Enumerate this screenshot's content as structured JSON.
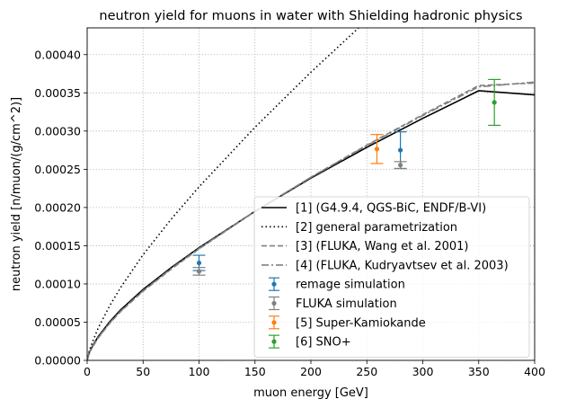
{
  "chart_data": {
    "type": "line",
    "title": "neutron yield for muons in water with Shielding hadronic physics",
    "xlabel": "muon energy [GeV]",
    "ylabel": "neutron yield [n/muon/(g/cm^2)]",
    "xlim": [
      0,
      400
    ],
    "ylim": [
      0,
      0.000435
    ],
    "xticks": [
      "0",
      "50",
      "100",
      "150",
      "200",
      "250",
      "300",
      "350",
      "400"
    ],
    "yticks": [
      "0.00000",
      "0.00005",
      "0.00010",
      "0.00015",
      "0.00020",
      "0.00025",
      "0.00030",
      "0.00035",
      "0.00040"
    ],
    "grid": true,
    "legend_position": "lower-right",
    "series": [
      {
        "name": "[1] (G4.9.4, QGS-BiC, ENDF/B-VI)",
        "kind": "line",
        "style": "solid",
        "color": "#000000",
        "x": [
          0,
          2,
          5,
          10,
          20,
          30,
          50,
          75,
          100,
          150,
          200,
          250,
          300,
          350,
          400
        ],
        "y": [
          0,
          1.06e-05,
          1.93e-05,
          3.13e-05,
          5.03e-05,
          6.62e-05,
          9.27e-05,
          0.0001212,
          0.0001473,
          0.000195,
          0.0002384,
          0.0002787,
          0.0003166,
          0.0003527,
          0.0003473
        ]
      },
      {
        "name": "[2] general parametrization",
        "kind": "line",
        "style": "dotted",
        "color": "#000000",
        "x": [
          0,
          2,
          5,
          10,
          20,
          30,
          50,
          75,
          100,
          150,
          200,
          250,
          270
        ],
        "y": [
          0,
          1.3e-05,
          2.5e-05,
          4.28e-05,
          7.1e-05,
          9.55e-05,
          0.0001382,
          0.0001846,
          0.000227,
          0.0003049,
          0.000377,
          0.000445,
          0.000472
        ]
      },
      {
        "name": "[3] (FLUKA, Wang et al. 2001)",
        "kind": "line",
        "style": "dashed",
        "color": "#808080",
        "x": [
          0,
          2,
          5,
          10,
          20,
          30,
          50,
          75,
          100,
          150,
          200,
          250,
          300,
          350,
          400
        ],
        "y": [
          0,
          9.8e-06,
          1.8e-05,
          2.96e-05,
          4.82e-05,
          6.4e-05,
          9.05e-05,
          0.0001192,
          0.0001458,
          0.0001947,
          0.0002396,
          0.0002816,
          0.0003214,
          0.0003595,
          0.0003629
        ]
      },
      {
        "name": "[4] (FLUKA, Kudryavtsev et al. 2003)",
        "kind": "line",
        "style": "dashdot",
        "color": "#808080",
        "x": [
          0,
          2,
          5,
          10,
          20,
          30,
          50,
          75,
          100,
          150,
          200,
          250,
          300,
          350,
          400
        ],
        "y": [
          0,
          1e-05,
          1.83e-05,
          3e-05,
          4.88e-05,
          6.46e-05,
          9.12e-05,
          0.0001199,
          0.0001464,
          0.000195,
          0.0002395,
          0.000281,
          0.0003203,
          0.0003578,
          0.000364
        ]
      },
      {
        "name": "remage simulation",
        "kind": "errorbar",
        "color": "#1f77b4",
        "x": [
          100,
          280
        ],
        "y": [
          0.0001275,
          0.000275
        ],
        "yerr": [
          1e-05,
          2.4e-05
        ]
      },
      {
        "name": "FLUKA simulation",
        "kind": "errorbar",
        "color": "#808080",
        "x": [
          100,
          280
        ],
        "y": [
          0.0001165,
          0.0002555
        ],
        "yerr": [
          5e-06,
          4.5e-06
        ]
      },
      {
        "name": "[5] Super-Kamiokande",
        "kind": "errorbar",
        "color": "#ff7f0e",
        "x": [
          259
        ],
        "y": [
          0.0002765
        ],
        "yerr": [
          1.9e-05
        ]
      },
      {
        "name": "[6] SNO+",
        "kind": "errorbar",
        "color": "#2ca02c",
        "x": [
          364
        ],
        "y": [
          0.0003375
        ],
        "yerr": [
          3e-05
        ]
      }
    ]
  }
}
